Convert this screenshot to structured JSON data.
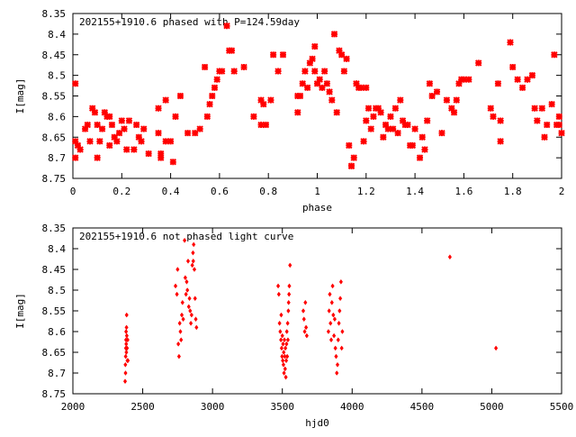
{
  "chart_data": [
    {
      "type": "scatter",
      "title": "202155+1910.6 phased with P=124.59day",
      "xlabel": "phase",
      "ylabel": "I[mag]",
      "xlim": [
        0,
        2
      ],
      "ylim": [
        8.75,
        8.35
      ],
      "y_inverted": true,
      "grid": false,
      "marker_color": "#ff0000",
      "x_ticks": [
        "0",
        "0.2",
        "0.4",
        "0.6",
        "0.8",
        "1",
        "1.2",
        "1.4",
        "1.6",
        "1.8",
        "2"
      ],
      "x_tick_values": [
        0,
        0.2,
        0.4,
        0.6,
        0.8,
        1.0,
        1.2,
        1.4,
        1.6,
        1.8,
        2.0
      ],
      "y_ticks": [
        "8.35",
        "8.4",
        "8.45",
        "8.5",
        "8.55",
        "8.6",
        "8.65",
        "8.7",
        "8.75"
      ],
      "y_tick_values": [
        8.35,
        8.4,
        8.45,
        8.5,
        8.55,
        8.6,
        8.65,
        8.7,
        8.75
      ],
      "points": [
        [
          0.01,
          8.52
        ],
        [
          0.01,
          8.66
        ],
        [
          0.01,
          8.7
        ],
        [
          0.02,
          8.67
        ],
        [
          0.03,
          8.68
        ],
        [
          0.05,
          8.63
        ],
        [
          0.06,
          8.62
        ],
        [
          0.07,
          8.66
        ],
        [
          0.08,
          8.58
        ],
        [
          0.09,
          8.59
        ],
        [
          0.1,
          8.62
        ],
        [
          0.1,
          8.7
        ],
        [
          0.11,
          8.66
        ],
        [
          0.12,
          8.63
        ],
        [
          0.13,
          8.59
        ],
        [
          0.14,
          8.6
        ],
        [
          0.15,
          8.6
        ],
        [
          0.15,
          8.67
        ],
        [
          0.16,
          8.62
        ],
        [
          0.17,
          8.65
        ],
        [
          0.18,
          8.66
        ],
        [
          0.19,
          8.64
        ],
        [
          0.2,
          8.61
        ],
        [
          0.21,
          8.63
        ],
        [
          0.22,
          8.68
        ],
        [
          0.23,
          8.61
        ],
        [
          0.25,
          8.68
        ],
        [
          0.26,
          8.62
        ],
        [
          0.27,
          8.65
        ],
        [
          0.28,
          8.66
        ],
        [
          0.29,
          8.63
        ],
        [
          0.31,
          8.69
        ],
        [
          0.35,
          8.64
        ],
        [
          0.35,
          8.58
        ],
        [
          0.36,
          8.69
        ],
        [
          0.36,
          8.7
        ],
        [
          0.38,
          8.56
        ],
        [
          0.38,
          8.66
        ],
        [
          0.4,
          8.66
        ],
        [
          0.41,
          8.71
        ],
        [
          0.42,
          8.6
        ],
        [
          0.44,
          8.55
        ],
        [
          0.47,
          8.64
        ],
        [
          0.5,
          8.64
        ],
        [
          0.52,
          8.63
        ],
        [
          0.54,
          8.48
        ],
        [
          0.55,
          8.6
        ],
        [
          0.56,
          8.57
        ],
        [
          0.57,
          8.55
        ],
        [
          0.58,
          8.53
        ],
        [
          0.59,
          8.51
        ],
        [
          0.6,
          8.49
        ],
        [
          0.61,
          8.49
        ],
        [
          0.63,
          8.38
        ],
        [
          0.64,
          8.44
        ],
        [
          0.65,
          8.44
        ],
        [
          0.66,
          8.49
        ],
        [
          0.7,
          8.48
        ],
        [
          0.74,
          8.6
        ],
        [
          0.77,
          8.56
        ],
        [
          0.77,
          8.62
        ],
        [
          0.78,
          8.57
        ],
        [
          0.79,
          8.62
        ],
        [
          0.81,
          8.56
        ],
        [
          0.82,
          8.45
        ],
        [
          0.84,
          8.49
        ],
        [
          0.86,
          8.45
        ],
        [
          0.92,
          8.59
        ],
        [
          0.92,
          8.55
        ],
        [
          0.93,
          8.55
        ],
        [
          0.94,
          8.52
        ],
        [
          0.95,
          8.49
        ],
        [
          0.96,
          8.53
        ],
        [
          0.97,
          8.47
        ],
        [
          0.98,
          8.46
        ],
        [
          0.99,
          8.43
        ],
        [
          0.99,
          8.49
        ],
        [
          1.0,
          8.52
        ],
        [
          1.01,
          8.51
        ],
        [
          1.02,
          8.53
        ],
        [
          1.03,
          8.49
        ],
        [
          1.04,
          8.52
        ],
        [
          1.05,
          8.54
        ],
        [
          1.06,
          8.56
        ],
        [
          1.07,
          8.4
        ],
        [
          1.08,
          8.59
        ],
        [
          1.09,
          8.44
        ],
        [
          1.1,
          8.45
        ],
        [
          1.11,
          8.49
        ],
        [
          1.12,
          8.46
        ],
        [
          1.13,
          8.67
        ],
        [
          1.14,
          8.72
        ],
        [
          1.14,
          8.72
        ],
        [
          1.15,
          8.7
        ],
        [
          1.16,
          8.52
        ],
        [
          1.17,
          8.53
        ],
        [
          1.18,
          8.53
        ],
        [
          1.19,
          8.66
        ],
        [
          1.2,
          8.53
        ],
        [
          1.2,
          8.61
        ],
        [
          1.21,
          8.58
        ],
        [
          1.22,
          8.63
        ],
        [
          1.23,
          8.6
        ],
        [
          1.24,
          8.58
        ],
        [
          1.25,
          8.58
        ],
        [
          1.26,
          8.59
        ],
        [
          1.27,
          8.65
        ],
        [
          1.28,
          8.62
        ],
        [
          1.29,
          8.63
        ],
        [
          1.3,
          8.6
        ],
        [
          1.31,
          8.63
        ],
        [
          1.32,
          8.58
        ],
        [
          1.33,
          8.64
        ],
        [
          1.34,
          8.56
        ],
        [
          1.35,
          8.61
        ],
        [
          1.36,
          8.62
        ],
        [
          1.37,
          8.62
        ],
        [
          1.38,
          8.67
        ],
        [
          1.39,
          8.67
        ],
        [
          1.4,
          8.63
        ],
        [
          1.42,
          8.7
        ],
        [
          1.43,
          8.65
        ],
        [
          1.44,
          8.68
        ],
        [
          1.45,
          8.61
        ],
        [
          1.46,
          8.52
        ],
        [
          1.47,
          8.55
        ],
        [
          1.49,
          8.54
        ],
        [
          1.51,
          8.64
        ],
        [
          1.53,
          8.56
        ],
        [
          1.55,
          8.58
        ],
        [
          1.56,
          8.59
        ],
        [
          1.57,
          8.56
        ],
        [
          1.58,
          8.52
        ],
        [
          1.59,
          8.51
        ],
        [
          1.6,
          8.51
        ],
        [
          1.62,
          8.51
        ],
        [
          1.66,
          8.47
        ],
        [
          1.71,
          8.58
        ],
        [
          1.72,
          8.6
        ],
        [
          1.74,
          8.52
        ],
        [
          1.75,
          8.61
        ],
        [
          1.75,
          8.66
        ],
        [
          1.79,
          8.42
        ],
        [
          1.8,
          8.48
        ],
        [
          1.82,
          8.51
        ],
        [
          1.84,
          8.53
        ],
        [
          1.86,
          8.51
        ],
        [
          1.88,
          8.5
        ],
        [
          1.89,
          8.58
        ],
        [
          1.9,
          8.61
        ],
        [
          1.92,
          8.58
        ],
        [
          1.93,
          8.65
        ],
        [
          1.94,
          8.62
        ],
        [
          1.96,
          8.57
        ],
        [
          1.97,
          8.45
        ],
        [
          1.98,
          8.62
        ],
        [
          1.99,
          8.6
        ],
        [
          1.99,
          8.62
        ],
        [
          2.0,
          8.64
        ]
      ]
    },
    {
      "type": "scatter",
      "title": "202155+1910.6 not phased light curve",
      "xlabel": "hjd0",
      "ylabel": "I[mag]",
      "xlim": [
        2000,
        5500
      ],
      "ylim": [
        8.75,
        8.35
      ],
      "y_inverted": true,
      "grid": false,
      "marker_color": "#ff0000",
      "x_ticks": [
        "2000",
        "2500",
        "3000",
        "3500",
        "4000",
        "4500",
        "5000",
        "5500"
      ],
      "x_tick_values": [
        2000,
        2500,
        3000,
        3500,
        4000,
        4500,
        5000,
        5500
      ],
      "y_ticks": [
        "8.35",
        "8.4",
        "8.45",
        "8.5",
        "8.55",
        "8.6",
        "8.65",
        "8.7",
        "8.75"
      ],
      "y_tick_values": [
        8.35,
        8.4,
        8.45,
        8.5,
        8.55,
        8.6,
        8.65,
        8.7,
        8.75
      ],
      "points": [
        [
          2374,
          8.72
        ],
        [
          2376,
          8.68
        ],
        [
          2377,
          8.7
        ],
        [
          2378,
          8.66
        ],
        [
          2379,
          8.64
        ],
        [
          2380,
          8.62
        ],
        [
          2381,
          8.6
        ],
        [
          2382,
          8.63
        ],
        [
          2383,
          8.65
        ],
        [
          2384,
          8.59
        ],
        [
          2385,
          8.56
        ],
        [
          2386,
          8.61
        ],
        [
          2388,
          8.64
        ],
        [
          2390,
          8.67
        ],
        [
          2392,
          8.62
        ],
        [
          2394,
          8.67
        ],
        [
          2735,
          8.49
        ],
        [
          2745,
          8.51
        ],
        [
          2750,
          8.45
        ],
        [
          2755,
          8.63
        ],
        [
          2760,
          8.66
        ],
        [
          2765,
          8.58
        ],
        [
          2770,
          8.6
        ],
        [
          2775,
          8.62
        ],
        [
          2780,
          8.56
        ],
        [
          2785,
          8.53
        ],
        [
          2790,
          8.57
        ],
        [
          2800,
          8.38
        ],
        [
          2805,
          8.47
        ],
        [
          2810,
          8.51
        ],
        [
          2815,
          8.48
        ],
        [
          2820,
          8.5
        ],
        [
          2825,
          8.43
        ],
        [
          2830,
          8.54
        ],
        [
          2835,
          8.52
        ],
        [
          2840,
          8.55
        ],
        [
          2845,
          8.58
        ],
        [
          2850,
          8.56
        ],
        [
          2855,
          8.44
        ],
        [
          2860,
          8.41
        ],
        [
          2862,
          8.43
        ],
        [
          2865,
          8.39
        ],
        [
          2870,
          8.45
        ],
        [
          2875,
          8.52
        ],
        [
          2880,
          8.57
        ],
        [
          2885,
          8.59
        ],
        [
          3470,
          8.49
        ],
        [
          3475,
          8.51
        ],
        [
          3480,
          8.58
        ],
        [
          3485,
          8.6
        ],
        [
          3490,
          8.62
        ],
        [
          3492,
          8.56
        ],
        [
          3495,
          8.64
        ],
        [
          3498,
          8.66
        ],
        [
          3500,
          8.61
        ],
        [
          3503,
          8.67
        ],
        [
          3505,
          8.63
        ],
        [
          3508,
          8.68
        ],
        [
          3510,
          8.65
        ],
        [
          3512,
          8.7
        ],
        [
          3515,
          8.62
        ],
        [
          3518,
          8.66
        ],
        [
          3520,
          8.69
        ],
        [
          3522,
          8.64
        ],
        [
          3525,
          8.71
        ],
        [
          3528,
          8.67
        ],
        [
          3530,
          8.63
        ],
        [
          3532,
          8.6
        ],
        [
          3535,
          8.66
        ],
        [
          3538,
          8.58
        ],
        [
          3540,
          8.62
        ],
        [
          3543,
          8.55
        ],
        [
          3545,
          8.53
        ],
        [
          3548,
          8.51
        ],
        [
          3550,
          8.49
        ],
        [
          3555,
          8.44
        ],
        [
          3650,
          8.55
        ],
        [
          3655,
          8.57
        ],
        [
          3660,
          8.6
        ],
        [
          3665,
          8.53
        ],
        [
          3670,
          8.59
        ],
        [
          3675,
          8.61
        ],
        [
          3830,
          8.6
        ],
        [
          3835,
          8.55
        ],
        [
          3840,
          8.51
        ],
        [
          3845,
          8.58
        ],
        [
          3850,
          8.62
        ],
        [
          3855,
          8.53
        ],
        [
          3860,
          8.49
        ],
        [
          3865,
          8.56
        ],
        [
          3870,
          8.61
        ],
        [
          3875,
          8.57
        ],
        [
          3880,
          8.64
        ],
        [
          3885,
          8.66
        ],
        [
          3890,
          8.7
        ],
        [
          3895,
          8.68
        ],
        [
          3900,
          8.62
        ],
        [
          3905,
          8.58
        ],
        [
          3910,
          8.55
        ],
        [
          3915,
          8.52
        ],
        [
          3920,
          8.48
        ],
        [
          3925,
          8.64
        ],
        [
          3930,
          8.6
        ],
        [
          4700,
          8.42
        ],
        [
          5030,
          8.64
        ]
      ]
    }
  ]
}
